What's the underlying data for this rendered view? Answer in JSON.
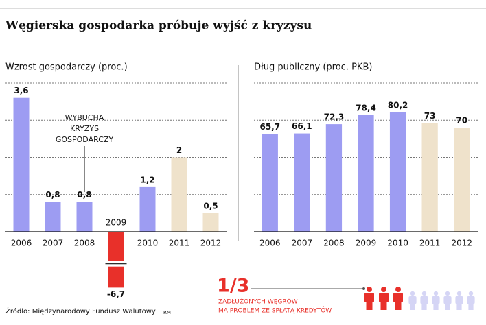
{
  "title": "Węgierska gospodarka próbuje wyjść z kryzysu",
  "chart_data": [
    {
      "type": "bar",
      "axis_label": "Wzrost gospodarczy (proc.)",
      "categories": [
        "2006",
        "2007",
        "2008",
        "2009",
        "2010",
        "2011",
        "2012"
      ],
      "values": [
        3.6,
        0.8,
        0.8,
        -6.7,
        1.2,
        2,
        0.5
      ],
      "value_labels": [
        "3,6",
        "0,8",
        "0,8",
        "-6,7",
        "1,2",
        "2",
        "0,5"
      ],
      "colors": [
        "#9d9cf2",
        "#9d9cf2",
        "#9d9cf2",
        "#e8302a",
        "#9d9cf2",
        "#efe2cb",
        "#efe2cb"
      ],
      "ylim": [
        -1.5,
        4
      ],
      "yticks": [
        0,
        1,
        2,
        3,
        4
      ],
      "grid": true,
      "axis_break": true,
      "annotation": [
        "WYBUCHA",
        "KRYZYS",
        "GOSPODARCZY"
      ]
    },
    {
      "type": "bar",
      "axis_label": "Dług publiczny (proc. PKB)",
      "categories": [
        "2006",
        "2007",
        "2008",
        "2009",
        "2010",
        "2011",
        "2012"
      ],
      "values": [
        65.7,
        66.1,
        72.3,
        78.4,
        80.2,
        73,
        70
      ],
      "value_labels": [
        "65,7",
        "66,1",
        "72,3",
        "78,4",
        "80,2",
        "73",
        "70"
      ],
      "colors": [
        "#9d9cf2",
        "#9d9cf2",
        "#9d9cf2",
        "#9d9cf2",
        "#9d9cf2",
        "#efe2cb",
        "#efe2cb"
      ],
      "ylim": [
        0,
        100
      ],
      "yticks": [
        0,
        25,
        50,
        75,
        100
      ],
      "grid": true
    }
  ],
  "infographic": {
    "fraction": "1/3",
    "lines": [
      "ZADŁUŻONYCH WĘGRÓW",
      "MA PROBLEM ZE SPŁATĄ KREDYTÓW"
    ]
  },
  "source": "Źródło: Międzynarodowy Fundusz Walutowy",
  "author": "RM"
}
